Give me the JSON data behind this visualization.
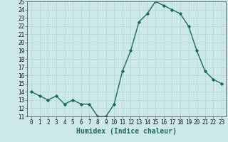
{
  "x": [
    0,
    1,
    2,
    3,
    4,
    5,
    6,
    7,
    8,
    9,
    10,
    11,
    12,
    13,
    14,
    15,
    16,
    17,
    18,
    19,
    20,
    21,
    22,
    23
  ],
  "y": [
    14,
    13.5,
    13,
    13.5,
    12.5,
    13,
    12.5,
    12.5,
    11,
    11,
    12.5,
    16.5,
    19,
    22.5,
    23.5,
    25,
    24.5,
    24,
    23.5,
    22,
    19,
    16.5,
    15.5,
    15
  ],
  "line_color": "#1a6b5a",
  "bg_color": "#cce8e8",
  "grid_color": "#b0d8d8",
  "xlabel": "Humidex (Indice chaleur)",
  "xlim": [
    -0.5,
    23.5
  ],
  "ylim": [
    11,
    25
  ],
  "yticks": [
    11,
    12,
    13,
    14,
    15,
    16,
    17,
    18,
    19,
    20,
    21,
    22,
    23,
    24,
    25
  ],
  "xticks": [
    0,
    1,
    2,
    3,
    4,
    5,
    6,
    7,
    8,
    9,
    10,
    11,
    12,
    13,
    14,
    15,
    16,
    17,
    18,
    19,
    20,
    21,
    22,
    23
  ],
  "tick_label_fontsize": 5.5,
  "xlabel_fontsize": 7,
  "marker": "D",
  "marker_size": 1.8,
  "line_width": 1.0
}
